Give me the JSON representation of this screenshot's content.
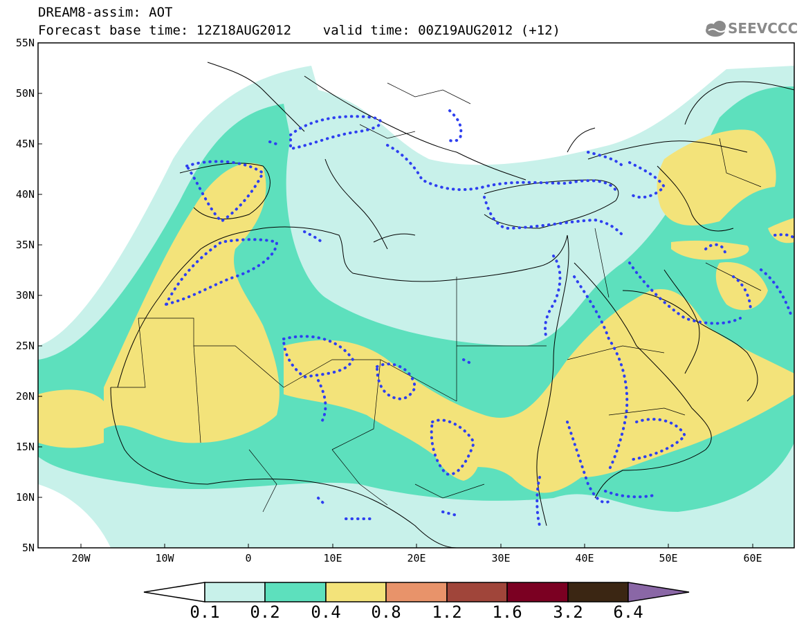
{
  "header": {
    "title_line1": "DREAM8-assim: AOT",
    "title_line2": "Forecast base time: 12Z18AUG2012    valid time: 00Z19AUG2012 (+12)",
    "logo_text": "SEEVCCC"
  },
  "axes": {
    "x_ticks": [
      "20W",
      "10W",
      "0",
      "10E",
      "20E",
      "30E",
      "40E",
      "50E",
      "60E"
    ],
    "y_ticks": [
      "55N",
      "50N",
      "45N",
      "40N",
      "35N",
      "30N",
      "25N",
      "20N",
      "15N",
      "10N",
      "5N"
    ]
  },
  "colorbar": {
    "labels": [
      "0.1",
      "0.2",
      "0.4",
      "0.8",
      "1.2",
      "1.6",
      "3.2",
      "6.4"
    ],
    "colors": [
      "#ffffff",
      "#c8f1ea",
      "#5de0bd",
      "#f3e37a",
      "#e8936a",
      "#a0453a",
      "#7b0022",
      "#3b2613",
      "#8a67a6"
    ]
  },
  "legend_colors": {
    "contour_line": "#2e3ff0",
    "land_border": "#000000"
  }
}
